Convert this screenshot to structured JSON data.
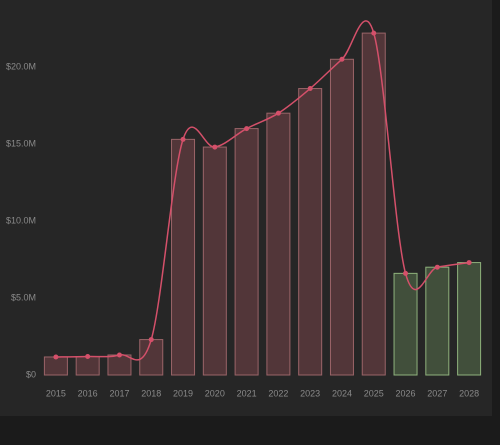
{
  "chart_data": {
    "type": "bar-line",
    "categories": [
      "2015",
      "2016",
      "2017",
      "2018",
      "2019",
      "2020",
      "2021",
      "2022",
      "2023",
      "2024",
      "2025",
      "2026",
      "2027",
      "2028"
    ],
    "values": [
      1170000,
      1200000,
      1300000,
      2300000,
      15300000,
      14800000,
      16000000,
      17000000,
      18600000,
      20500000,
      22200000,
      6600000,
      7000000,
      7300000
    ],
    "bar_colors": [
      "#5a3a3d",
      "#5a3a3d",
      "#5a3a3d",
      "#5a3a3d",
      "#5a3a3d",
      "#5a3a3d",
      "#5a3a3d",
      "#5a3a3d",
      "#5a3a3d",
      "#5a3a3d",
      "#5a3a3d",
      "#46573f",
      "#46573f",
      "#46573f"
    ],
    "bar_edge_colors": [
      "#9a6468",
      "#9a6468",
      "#9a6468",
      "#9a6468",
      "#9a6468",
      "#9a6468",
      "#9a6468",
      "#9a6468",
      "#9a6468",
      "#9a6468",
      "#9a6468",
      "#8fb27c",
      "#8fb27c",
      "#8fb27c"
    ],
    "line_color": "#d4506a",
    "ylim": [
      0,
      23700000
    ],
    "yticks": [
      {
        "value": 0,
        "label": "$0"
      },
      {
        "value": 5000000,
        "label": "$5.0M"
      },
      {
        "value": 10000000,
        "label": "$10.0M"
      },
      {
        "value": 15000000,
        "label": "$15.0M"
      },
      {
        "value": 20000000,
        "label": "$20.0M"
      }
    ]
  }
}
